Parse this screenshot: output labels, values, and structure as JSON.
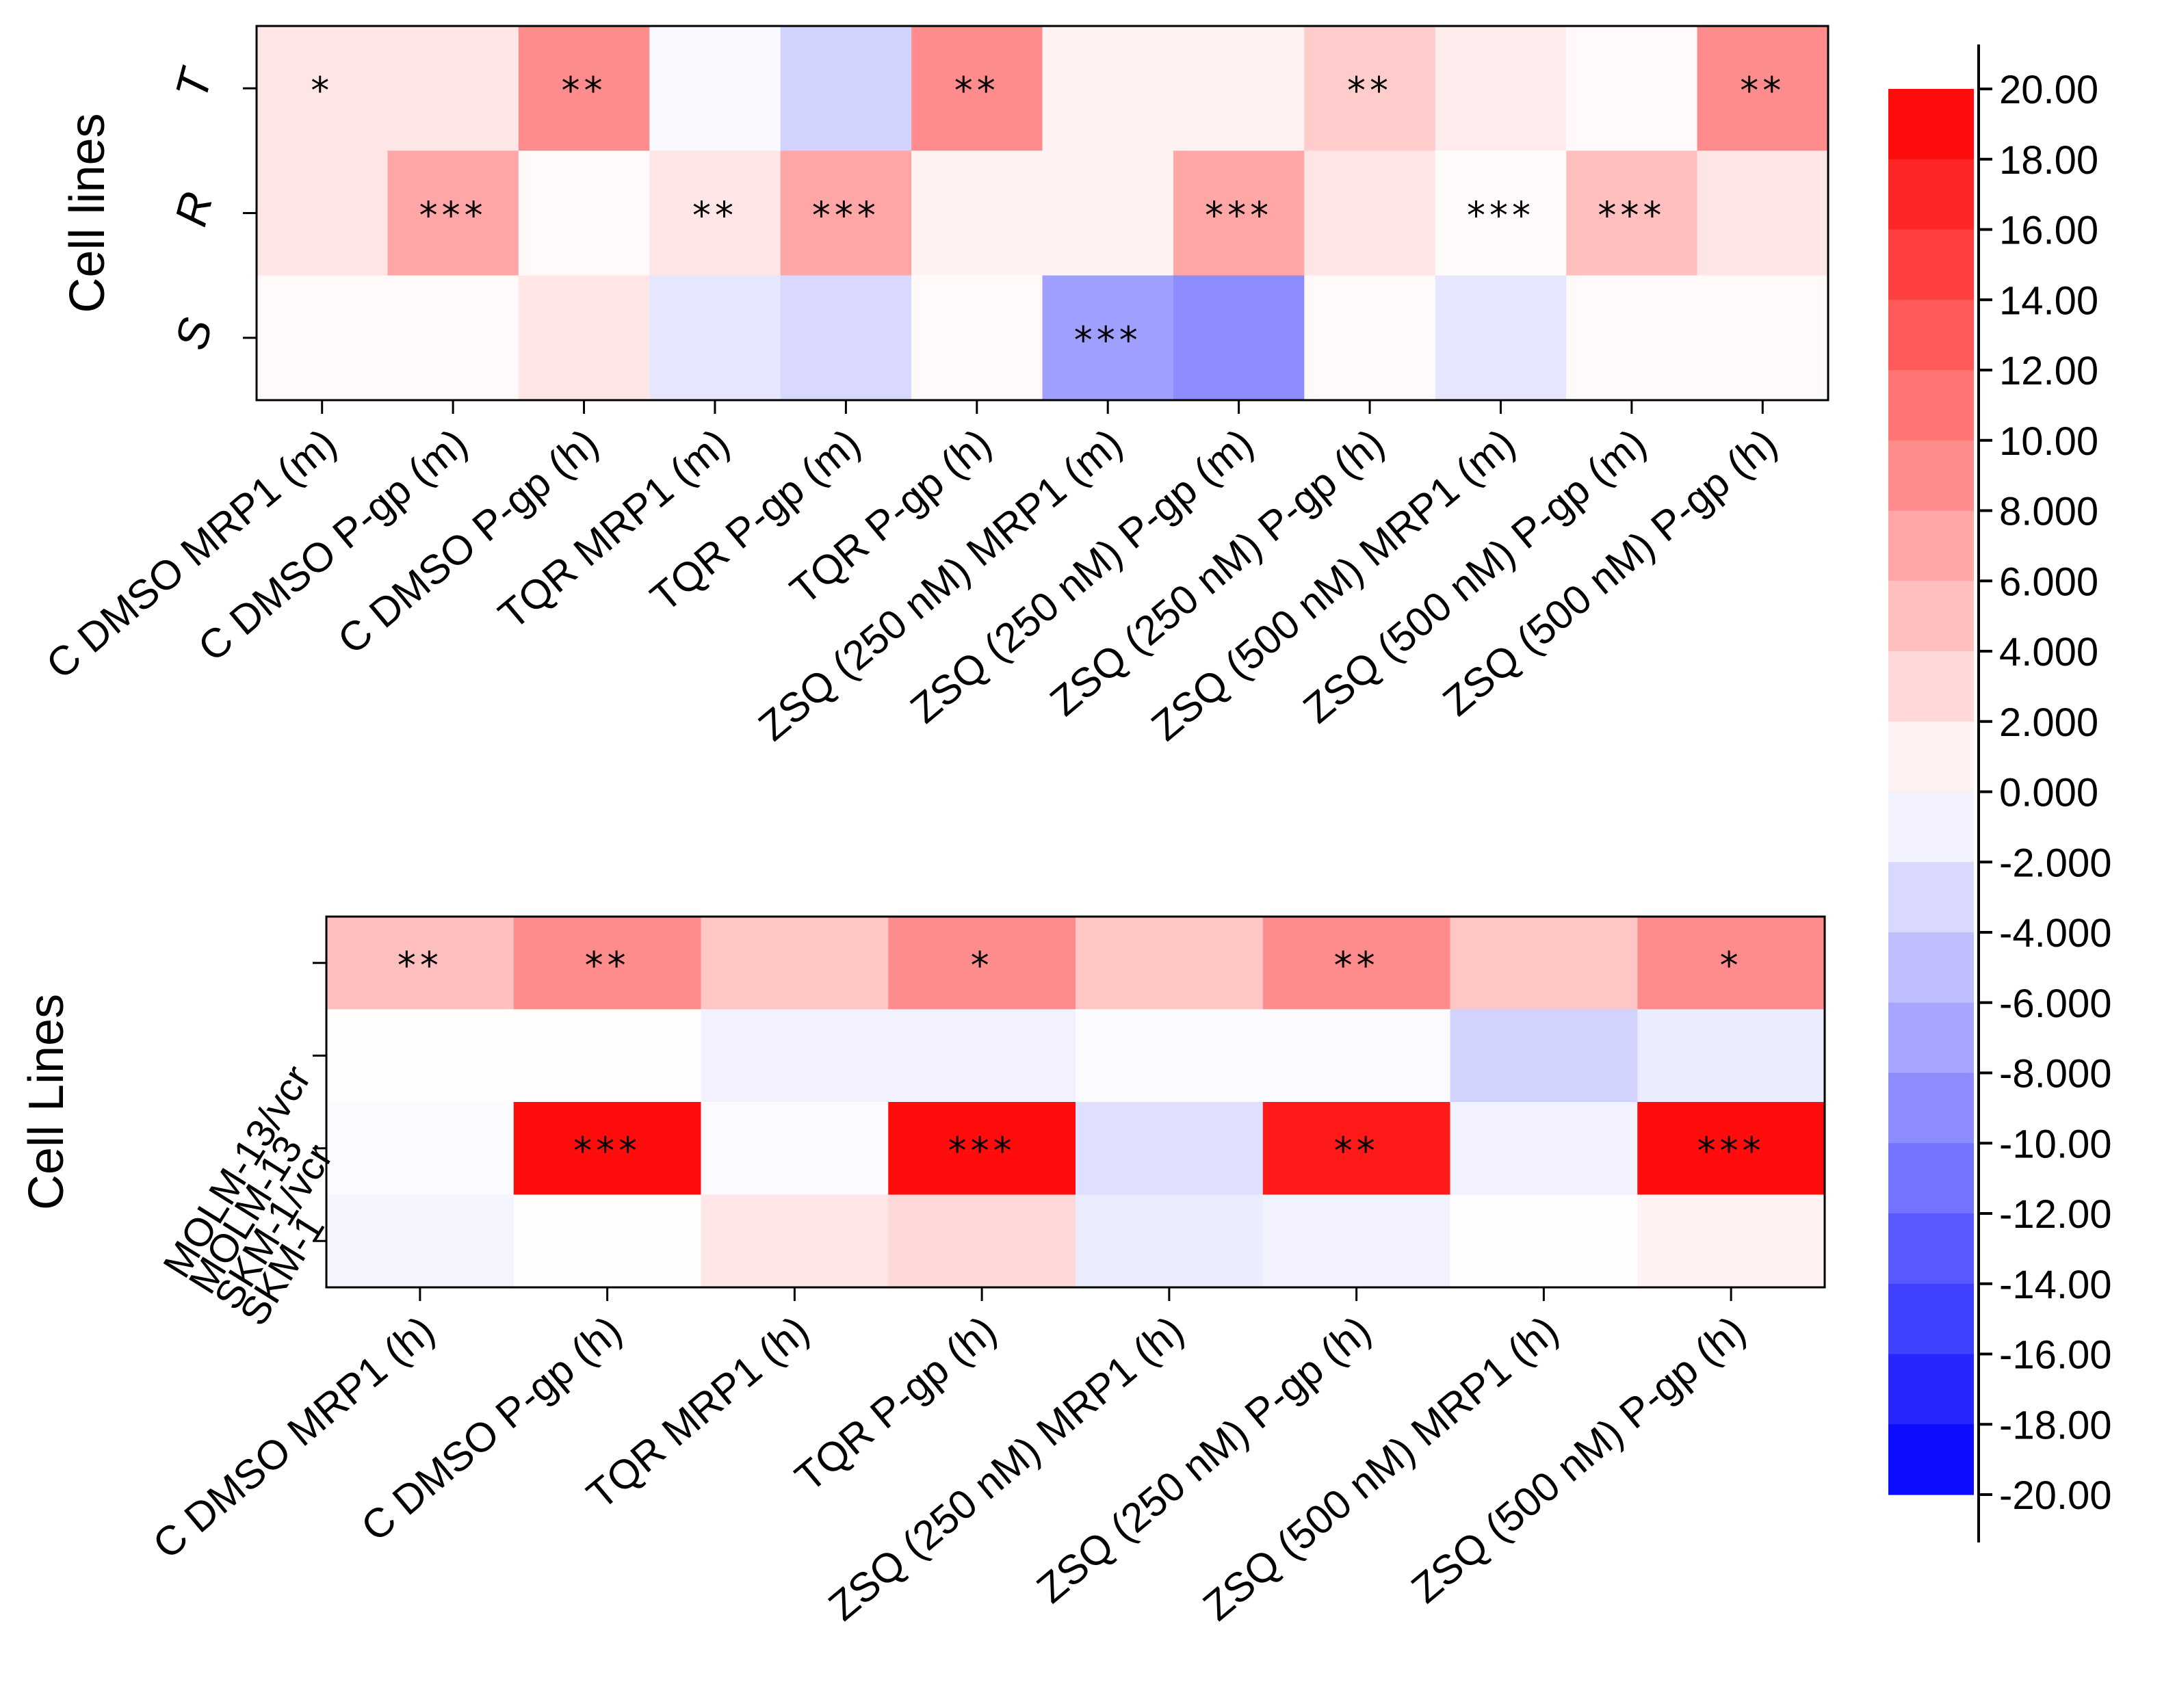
{
  "chart_data": [
    {
      "type": "heatmap",
      "title": "",
      "ylabel": "Cell lines",
      "xlabel": "",
      "rows": [
        "T",
        "R",
        "S"
      ],
      "columns": [
        "C DMSO MRP1 (m)",
        "C DMSO P-gp (m)",
        "C DMSO P-gp (h)",
        "TQR MRP1 (m)",
        "TQR P-gp (m)",
        "TQR P-gp (h)",
        "ZSQ (250 nM) MRP1 (m)",
        "ZSQ (250 nM)  P-gp (m)",
        "ZSQ (250 nM) P-gp (h)",
        "ZSQ (500 nM) MRP1 (m)",
        "ZSQ (500 nM) P-gp (m)",
        "ZSQ (500 nM) P-gp (h)"
      ],
      "values": [
        [
          2,
          2,
          9,
          -0.5,
          -3.5,
          9,
          1,
          1,
          4,
          1.5,
          0.5,
          9
        ],
        [
          2,
          7,
          0.5,
          2,
          7,
          1,
          1,
          7,
          2,
          0.3,
          5,
          2
        ],
        [
          0.5,
          0.5,
          2,
          -2,
          -3,
          0.5,
          -7.5,
          -9,
          0.5,
          -2,
          0.5,
          0.5
        ]
      ],
      "annotations": [
        [
          "*",
          "",
          "**",
          "",
          "",
          "**",
          "",
          "",
          "**",
          "",
          "",
          "**"
        ],
        [
          "",
          "***",
          "",
          "**",
          "***",
          "",
          "",
          "***",
          "",
          "***",
          "***",
          ""
        ],
        [
          "",
          "",
          "",
          "",
          "",
          "",
          "***",
          "",
          "",
          "",
          "",
          ""
        ]
      ]
    },
    {
      "type": "heatmap",
      "title": "",
      "ylabel": "Cell Lines",
      "xlabel": "",
      "rows": [
        "MOLM-13/vcr",
        "MOLM-13",
        "SKM-1/vcr",
        "SKM-1"
      ],
      "columns": [
        "C DMSO MRP1 (h)",
        "C DMSO P-gp (h)",
        "TQR MRP1 (h)",
        "TQR P-gp (h)",
        "ZSQ (250 nM) MRP1 (h)",
        "ZSQ (250 nM) P-gp (h)",
        "ZSQ (500 nM) MRP1 (h)",
        "ZSQ (500 nM) P-gp (h)"
      ],
      "values": [
        [
          5,
          9,
          4.5,
          9,
          4.5,
          9,
          4.5,
          9
        ],
        [
          0.2,
          0.2,
          -1,
          -1,
          -0.3,
          -0.3,
          -3.5,
          -1.5
        ],
        [
          -0.3,
          19,
          -0.3,
          19,
          -2.5,
          18,
          -1,
          19
        ],
        [
          -0.8,
          0.2,
          2,
          3,
          -1.5,
          -1,
          0.1,
          1
        ]
      ],
      "annotations": [
        [
          "**",
          "**",
          "",
          "*",
          "",
          "**",
          "",
          "*"
        ],
        [
          "",
          "",
          "",
          "",
          "",
          "",
          "",
          ""
        ],
        [
          "",
          "***",
          "",
          "***",
          "",
          "**",
          "",
          "***"
        ],
        [
          "",
          "",
          "",
          "",
          "",
          "",
          "",
          ""
        ]
      ]
    }
  ],
  "colorbar": {
    "min": -20,
    "max": 20,
    "step": 2,
    "low_color": "#0000ff",
    "mid_color": "#ffffff",
    "high_color": "#ff0000",
    "labels": [
      "20.00",
      "18.00",
      "16.00",
      "14.00",
      "12.00",
      "10.00",
      "8.000",
      "6.000",
      "4.000",
      "2.000",
      "0.000",
      "-2.000",
      "-4.000",
      "-6.000",
      "-8.000",
      "-10.00",
      "-12.00",
      "-14.00",
      "-16.00",
      "-18.00",
      "-20.00"
    ]
  }
}
